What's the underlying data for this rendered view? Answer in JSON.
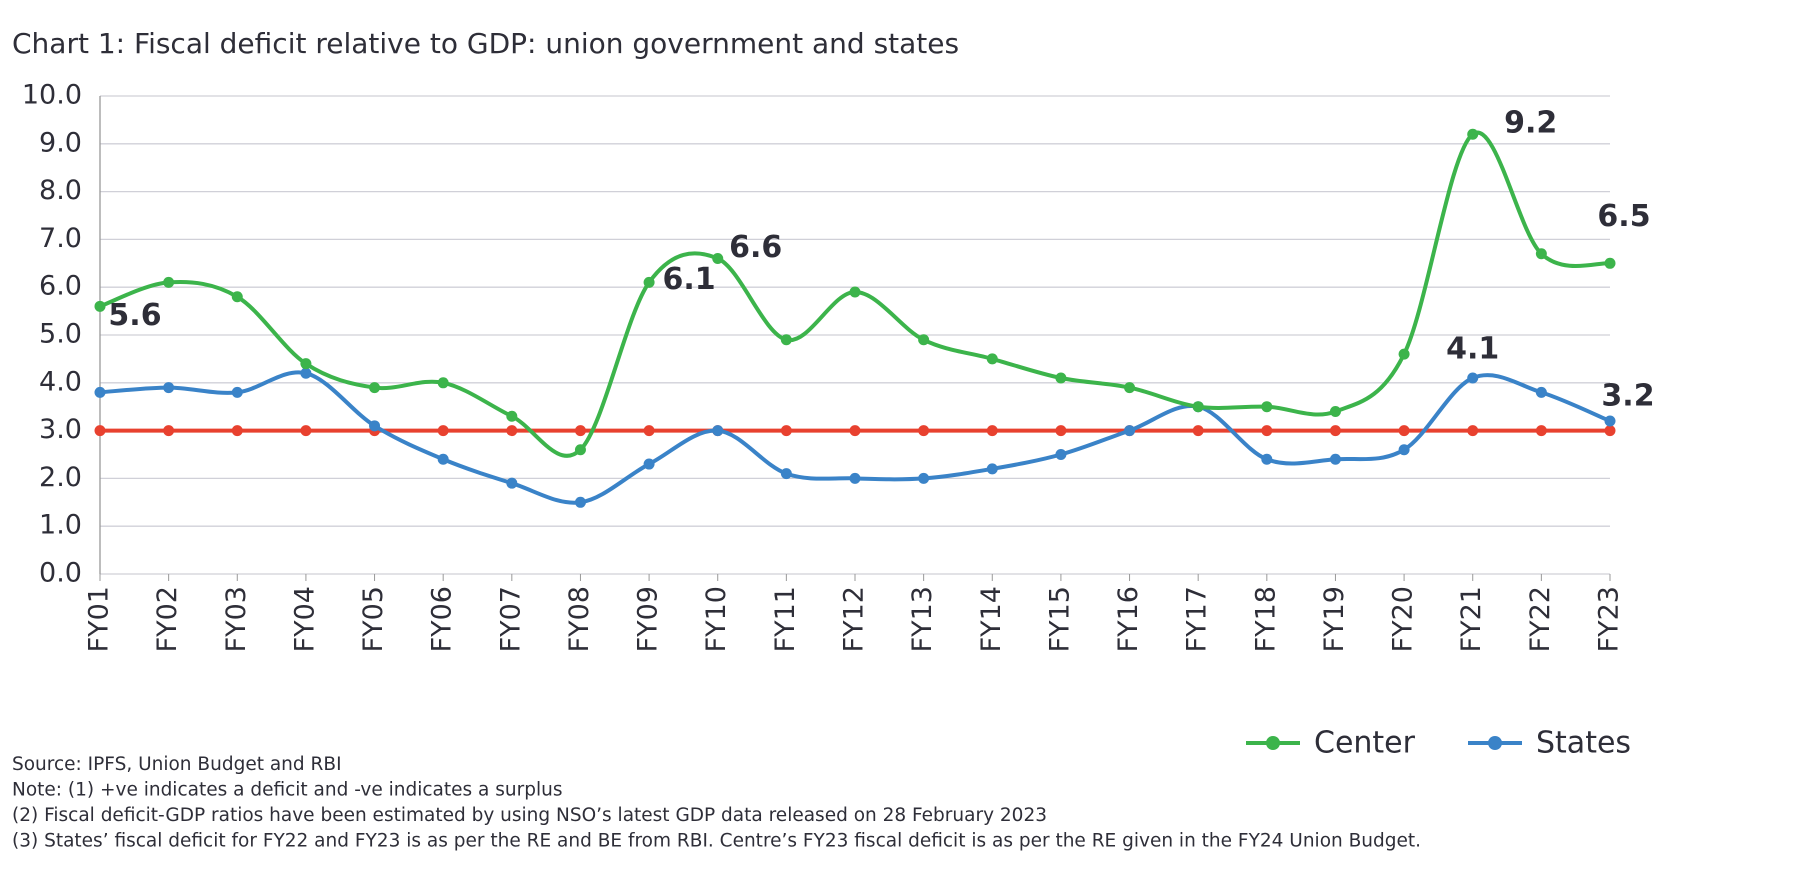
{
  "chart_data": {
    "type": "line",
    "title": "Chart 1: Fiscal deficit relative to GDP: union government and states",
    "categories": [
      "FY01",
      "FY02",
      "FY03",
      "FY04",
      "FY05",
      "FY06",
      "FY07",
      "FY08",
      "FY09",
      "FY10",
      "FY11",
      "FY12",
      "FY13",
      "FY14",
      "FY15",
      "FY16",
      "FY17",
      "FY18",
      "FY19",
      "FY20",
      "FY21",
      "FY22",
      "FY23"
    ],
    "series": [
      {
        "name": "Center",
        "color": "#3cb44b",
        "values": [
          5.6,
          6.1,
          5.8,
          4.4,
          3.9,
          4.0,
          3.3,
          2.6,
          6.1,
          6.6,
          4.9,
          5.9,
          4.9,
          4.5,
          4.1,
          3.9,
          3.5,
          3.5,
          3.4,
          4.6,
          9.2,
          6.7,
          6.5
        ],
        "value_labels": [
          "5.6",
          null,
          null,
          null,
          null,
          null,
          null,
          null,
          "6.1",
          "6.6",
          null,
          null,
          null,
          null,
          null,
          null,
          null,
          null,
          null,
          null,
          "9.2",
          null,
          "6.5"
        ]
      },
      {
        "name": "States",
        "color": "#3a83c8",
        "values": [
          3.8,
          3.9,
          3.8,
          4.2,
          3.1,
          2.4,
          1.9,
          1.5,
          2.3,
          3.0,
          2.1,
          2.0,
          2.0,
          2.2,
          2.5,
          3.0,
          3.5,
          2.4,
          2.4,
          2.6,
          4.1,
          3.8,
          3.2
        ],
        "value_labels": [
          null,
          null,
          null,
          null,
          null,
          null,
          null,
          null,
          null,
          null,
          null,
          null,
          null,
          null,
          null,
          null,
          null,
          null,
          null,
          null,
          "4.1",
          null,
          "3.2"
        ]
      },
      {
        "color": "#e8412f",
        "values": [
          3.0,
          3.0,
          3.0,
          3.0,
          3.0,
          3.0,
          3.0,
          3.0,
          3.0,
          3.0,
          3.0,
          3.0,
          3.0,
          3.0,
          3.0,
          3.0,
          3.0,
          3.0,
          3.0,
          3.0,
          3.0,
          3.0,
          3.0
        ]
      }
    ],
    "ylim": [
      0,
      10
    ],
    "yticks": [
      {
        "value": 0,
        "label": "0.0"
      },
      {
        "value": 1,
        "label": "1.0"
      },
      {
        "value": 2,
        "label": "2.0"
      },
      {
        "value": 3,
        "label": "3.0"
      },
      {
        "value": 4,
        "label": "4.0"
      },
      {
        "value": 5,
        "label": "5.0"
      },
      {
        "value": 6,
        "label": "6.0"
      },
      {
        "value": 7,
        "label": "7.0"
      },
      {
        "value": 8,
        "label": "8.0"
      },
      {
        "value": 9,
        "label": "9.0"
      },
      {
        "value": 10,
        "label": "10.0"
      }
    ],
    "grid": true,
    "smooth": true,
    "legend": "bottom-right",
    "notes": [
      "Source: IPFS, Union Budget and RBI",
      "Note: (1) +ve indicates a deficit and -ve indicates a surplus",
      "(2) Fiscal deficit-GDP ratios have been estimated by using NSO’s latest GDP data released on 28 February 2023",
      "(3) States’ fiscal deficit for FY22 and FY23 is as per the RE and BE from RBI. Centre’s FY23 fiscal deficit is as per the RE given in the FY24 Union Budget."
    ]
  }
}
